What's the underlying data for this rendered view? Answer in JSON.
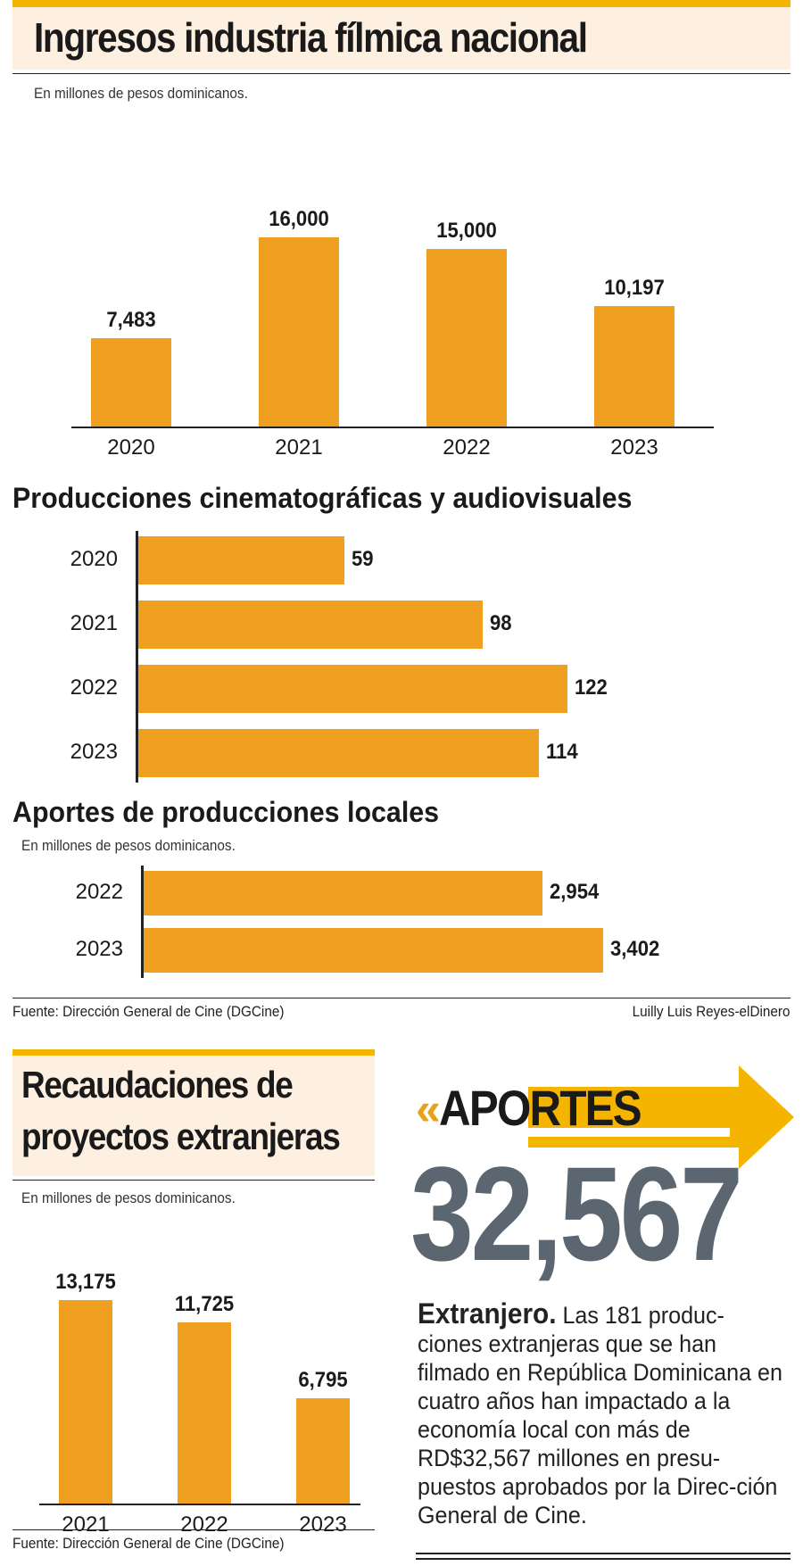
{
  "header": {
    "title": "Ingresos industria fílmica nacional",
    "subtitle": "En millones de pesos dominicanos."
  },
  "chart_data": [
    {
      "type": "bar",
      "title": "Ingresos industria fílmica nacional",
      "subtitle": "En millones de pesos dominicanos.",
      "categories": [
        "2020",
        "2021",
        "2022",
        "2023"
      ],
      "values": [
        7483,
        16000,
        15000,
        10197
      ],
      "value_labels": [
        "7,483",
        "16,000",
        "15,000",
        "10,197"
      ],
      "ylim": [
        0,
        16000
      ],
      "orientation": "vertical",
      "color": "#f0a021"
    },
    {
      "type": "bar",
      "title": "Producciones cinematográficas y audiovisuales",
      "categories": [
        "2020",
        "2021",
        "2022",
        "2023"
      ],
      "values": [
        59,
        98,
        122,
        114
      ],
      "value_labels": [
        "59",
        "98",
        "122",
        "114"
      ],
      "xlim": [
        0,
        122
      ],
      "orientation": "horizontal",
      "color": "#f0a021"
    },
    {
      "type": "bar",
      "title": "Aportes de producciones locales",
      "subtitle": "En millones de pesos dominicanos.",
      "categories": [
        "2022",
        "2023"
      ],
      "values": [
        2954,
        3402
      ],
      "value_labels": [
        "2,954",
        "3,402"
      ],
      "xlim": [
        0,
        3402
      ],
      "orientation": "horizontal",
      "color": "#f0a021"
    },
    {
      "type": "bar",
      "title": "Recaudaciones de proyectos extranjeras",
      "subtitle": "En millones de pesos dominicanos.",
      "categories": [
        "2021",
        "2022",
        "2023"
      ],
      "values": [
        13175,
        11725,
        6795
      ],
      "value_labels": [
        "13,175",
        "11,725",
        "6,795"
      ],
      "ylim": [
        0,
        13175
      ],
      "orientation": "vertical",
      "color": "#f0a021"
    }
  ],
  "sections": {
    "producciones_title": "Producciones cinematográficas y audiovisuales",
    "aportes_locales_title": "Aportes de producciones locales",
    "aportes_locales_subtitle": "En millones de pesos dominicanos.",
    "recaudaciones_title_line1": "Recaudaciones de",
    "recaudaciones_title_line2": "proyectos extranjeras",
    "recaudaciones_subtitle": "En millones de pesos dominicanos."
  },
  "footer": {
    "source": "Fuente: Dirección General de Cine (DGCine)",
    "credit": "Luilly Luis Reyes-elDinero",
    "source_bottom": "Fuente: Dirección General de Cine (DGCine)"
  },
  "callout": {
    "quote_mark": "«",
    "label": "APORTES",
    "number": "32,567",
    "lead": "Extranjero.",
    "text": " Las 181 produc-ciones extranjeras que se han filmado en República Dominicana en cuatro años han impactado a la economía local con más de RD$32,567 millones en presu-puestos aprobados por la Direc-ción General de Cine.",
    "arrow_color": "#f5b400",
    "number_color": "#5b6670",
    "quote_color": "#e8a21a"
  },
  "colors": {
    "bar": "#f0a021",
    "accent": "#f5b400",
    "panel": "#fdf0e1"
  }
}
